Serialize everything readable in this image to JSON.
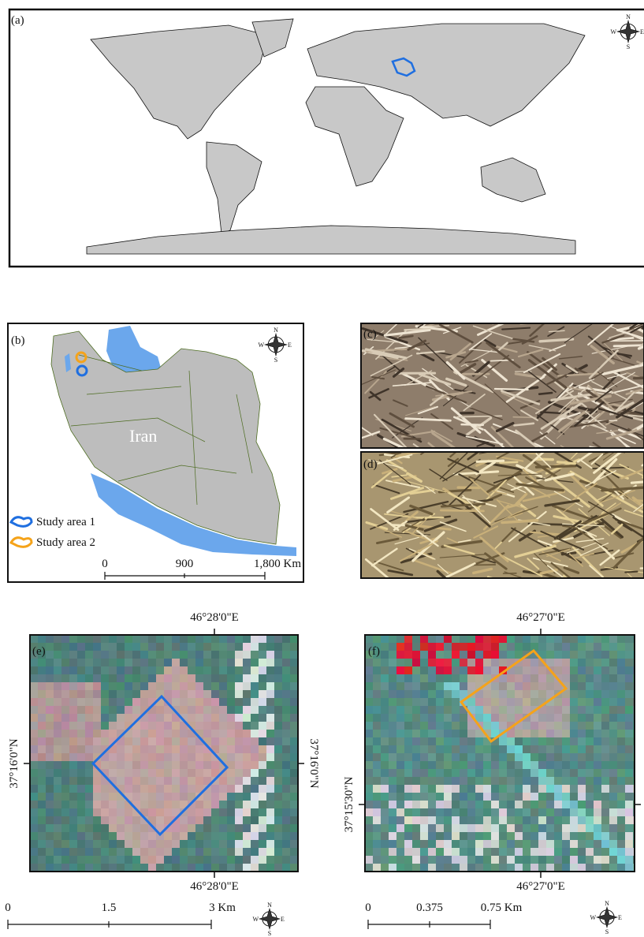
{
  "panel_a": {
    "label": "(a)"
  },
  "compass": {
    "n": "N",
    "e": "E",
    "s": "S",
    "w": "W"
  },
  "panel_b": {
    "label": "(b)",
    "country": "Iran",
    "legend": [
      "Study area 1",
      "Study area 2"
    ],
    "scale": [
      "0",
      "900",
      "1,800 Km"
    ]
  },
  "panel_c": {
    "label": "(c)"
  },
  "panel_d": {
    "label": "(d)"
  },
  "panel_e": {
    "label": "(e)",
    "lon_top": "46°28'0\"E",
    "lon_bottom": "46°28'0\"E",
    "lat_left": "37°16'0\"N",
    "lat_right": "37°16'0\"N",
    "scale": [
      "0",
      "1.5",
      "3 Km"
    ]
  },
  "panel_f": {
    "label": "(f)",
    "lon_top": "46°27'0\"E",
    "lon_bottom": "46°27'0\"E",
    "lat_left": "37°15'30\"N",
    "scale": [
      "0",
      "0.375",
      "0.75 Km"
    ]
  }
}
